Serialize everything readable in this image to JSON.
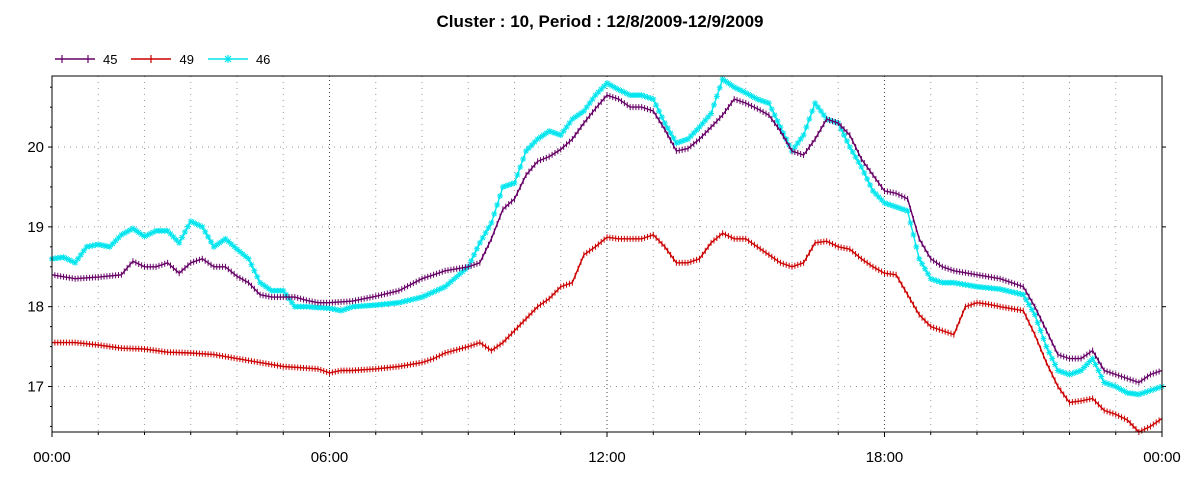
{
  "chart_data": {
    "type": "line",
    "title": "Cluster : 10, Period : 12/8/2009-12/9/2009",
    "xlabel": "",
    "ylabel": "",
    "x_range_hours": [
      0,
      24
    ],
    "xlim_labels": [
      "00:00",
      "00:00"
    ],
    "x_ticks": [
      {
        "hour": 0,
        "label": "00:00"
      },
      {
        "hour": 6,
        "label": "06:00"
      },
      {
        "hour": 12,
        "label": "12:00"
      },
      {
        "hour": 18,
        "label": "18:00"
      },
      {
        "hour": 24,
        "label": "00:00"
      }
    ],
    "y_ticks": [
      17,
      18,
      19,
      20
    ],
    "ylim": [
      16.43,
      20.89
    ],
    "grid": true,
    "legend_position": "top-left",
    "series": [
      {
        "name": "45",
        "color": "#660066",
        "marker": "+",
        "points": [
          [
            0,
            18.4
          ],
          [
            0.5,
            18.35
          ],
          [
            1,
            18.37
          ],
          [
            1.5,
            18.4
          ],
          [
            1.75,
            18.57
          ],
          [
            2,
            18.5
          ],
          [
            2.25,
            18.5
          ],
          [
            2.5,
            18.55
          ],
          [
            2.75,
            18.42
          ],
          [
            3,
            18.55
          ],
          [
            3.25,
            18.6
          ],
          [
            3.5,
            18.5
          ],
          [
            3.75,
            18.5
          ],
          [
            4,
            18.38
          ],
          [
            4.25,
            18.3
          ],
          [
            4.5,
            18.15
          ],
          [
            4.75,
            18.12
          ],
          [
            5,
            18.12
          ],
          [
            5.25,
            18.12
          ],
          [
            5.5,
            18.08
          ],
          [
            5.75,
            18.05
          ],
          [
            6,
            18.05
          ],
          [
            6.5,
            18.07
          ],
          [
            7,
            18.13
          ],
          [
            7.5,
            18.2
          ],
          [
            8,
            18.35
          ],
          [
            8.25,
            18.4
          ],
          [
            8.5,
            18.45
          ],
          [
            9,
            18.5
          ],
          [
            9.25,
            18.55
          ],
          [
            9.5,
            18.85
          ],
          [
            9.75,
            19.22
          ],
          [
            10,
            19.35
          ],
          [
            10.25,
            19.65
          ],
          [
            10.5,
            19.82
          ],
          [
            10.75,
            19.88
          ],
          [
            11,
            19.97
          ],
          [
            11.25,
            20.1
          ],
          [
            11.5,
            20.3
          ],
          [
            11.75,
            20.48
          ],
          [
            12,
            20.65
          ],
          [
            12.25,
            20.6
          ],
          [
            12.5,
            20.5
          ],
          [
            12.75,
            20.5
          ],
          [
            13,
            20.45
          ],
          [
            13.25,
            20.22
          ],
          [
            13.5,
            19.95
          ],
          [
            13.75,
            19.98
          ],
          [
            14,
            20.1
          ],
          [
            14.25,
            20.25
          ],
          [
            14.5,
            20.4
          ],
          [
            14.75,
            20.6
          ],
          [
            15,
            20.55
          ],
          [
            15.25,
            20.48
          ],
          [
            15.5,
            20.4
          ],
          [
            15.75,
            20.2
          ],
          [
            16,
            19.95
          ],
          [
            16.25,
            19.9
          ],
          [
            16.5,
            20.1
          ],
          [
            16.75,
            20.35
          ],
          [
            17,
            20.3
          ],
          [
            17.25,
            20.15
          ],
          [
            17.5,
            19.85
          ],
          [
            17.75,
            19.65
          ],
          [
            18,
            19.45
          ],
          [
            18.25,
            19.42
          ],
          [
            18.5,
            19.35
          ],
          [
            18.75,
            18.85
          ],
          [
            19,
            18.6
          ],
          [
            19.25,
            18.5
          ],
          [
            19.5,
            18.45
          ],
          [
            20,
            18.4
          ],
          [
            20.5,
            18.35
          ],
          [
            21,
            18.25
          ],
          [
            21.25,
            18.0
          ],
          [
            21.5,
            17.7
          ],
          [
            21.75,
            17.4
          ],
          [
            22,
            17.35
          ],
          [
            22.25,
            17.35
          ],
          [
            22.5,
            17.45
          ],
          [
            22.75,
            17.2
          ],
          [
            23,
            17.15
          ],
          [
            23.25,
            17.1
          ],
          [
            23.5,
            17.05
          ],
          [
            23.75,
            17.15
          ],
          [
            24,
            17.2
          ]
        ]
      },
      {
        "name": "49",
        "color": "#cc0000",
        "marker": "+",
        "points": [
          [
            0,
            17.55
          ],
          [
            0.5,
            17.55
          ],
          [
            1,
            17.52
          ],
          [
            1.5,
            17.48
          ],
          [
            2,
            17.47
          ],
          [
            2.5,
            17.43
          ],
          [
            3,
            17.42
          ],
          [
            3.5,
            17.4
          ],
          [
            4,
            17.35
          ],
          [
            4.5,
            17.3
          ],
          [
            5,
            17.25
          ],
          [
            5.5,
            17.23
          ],
          [
            5.75,
            17.22
          ],
          [
            6,
            17.17
          ],
          [
            6.25,
            17.2
          ],
          [
            6.5,
            17.2
          ],
          [
            7,
            17.22
          ],
          [
            7.5,
            17.25
          ],
          [
            8,
            17.3
          ],
          [
            8.25,
            17.35
          ],
          [
            8.5,
            17.42
          ],
          [
            9,
            17.5
          ],
          [
            9.25,
            17.55
          ],
          [
            9.5,
            17.45
          ],
          [
            9.75,
            17.55
          ],
          [
            10,
            17.7
          ],
          [
            10.25,
            17.85
          ],
          [
            10.5,
            18.0
          ],
          [
            10.75,
            18.1
          ],
          [
            11,
            18.25
          ],
          [
            11.25,
            18.3
          ],
          [
            11.5,
            18.65
          ],
          [
            11.75,
            18.75
          ],
          [
            12,
            18.87
          ],
          [
            12.25,
            18.85
          ],
          [
            12.5,
            18.85
          ],
          [
            12.75,
            18.85
          ],
          [
            13,
            18.9
          ],
          [
            13.25,
            18.75
          ],
          [
            13.5,
            18.55
          ],
          [
            13.75,
            18.55
          ],
          [
            14,
            18.6
          ],
          [
            14.25,
            18.8
          ],
          [
            14.5,
            18.92
          ],
          [
            14.75,
            18.85
          ],
          [
            15,
            18.85
          ],
          [
            15.25,
            18.75
          ],
          [
            15.5,
            18.65
          ],
          [
            15.75,
            18.55
          ],
          [
            16,
            18.5
          ],
          [
            16.25,
            18.55
          ],
          [
            16.5,
            18.8
          ],
          [
            16.75,
            18.82
          ],
          [
            17,
            18.75
          ],
          [
            17.25,
            18.72
          ],
          [
            17.5,
            18.6
          ],
          [
            17.75,
            18.5
          ],
          [
            18,
            18.42
          ],
          [
            18.25,
            18.4
          ],
          [
            18.5,
            18.15
          ],
          [
            18.75,
            17.9
          ],
          [
            19,
            17.75
          ],
          [
            19.25,
            17.7
          ],
          [
            19.5,
            17.65
          ],
          [
            19.75,
            18.0
          ],
          [
            20,
            18.05
          ],
          [
            20.25,
            18.03
          ],
          [
            20.5,
            18.0
          ],
          [
            21,
            17.95
          ],
          [
            21.25,
            17.65
          ],
          [
            21.5,
            17.3
          ],
          [
            21.75,
            17.0
          ],
          [
            22,
            16.8
          ],
          [
            22.25,
            16.82
          ],
          [
            22.5,
            16.85
          ],
          [
            22.75,
            16.7
          ],
          [
            23,
            16.65
          ],
          [
            23.25,
            16.58
          ],
          [
            23.5,
            16.43
          ],
          [
            23.75,
            16.5
          ],
          [
            24,
            16.6
          ]
        ]
      },
      {
        "name": "46",
        "color": "#00e5ee",
        "marker": "*",
        "points": [
          [
            0,
            18.6
          ],
          [
            0.25,
            18.62
          ],
          [
            0.5,
            18.55
          ],
          [
            0.75,
            18.75
          ],
          [
            1,
            18.78
          ],
          [
            1.25,
            18.75
          ],
          [
            1.5,
            18.9
          ],
          [
            1.75,
            18.98
          ],
          [
            2,
            18.88
          ],
          [
            2.25,
            18.95
          ],
          [
            2.5,
            18.95
          ],
          [
            2.75,
            18.8
          ],
          [
            3,
            19.07
          ],
          [
            3.25,
            19.0
          ],
          [
            3.5,
            18.75
          ],
          [
            3.75,
            18.85
          ],
          [
            4,
            18.72
          ],
          [
            4.25,
            18.6
          ],
          [
            4.5,
            18.3
          ],
          [
            4.75,
            18.2
          ],
          [
            5,
            18.2
          ],
          [
            5.25,
            18.0
          ],
          [
            5.5,
            18.0
          ],
          [
            6,
            17.98
          ],
          [
            6.25,
            17.95
          ],
          [
            6.5,
            18.0
          ],
          [
            7,
            18.02
          ],
          [
            7.5,
            18.05
          ],
          [
            8,
            18.12
          ],
          [
            8.5,
            18.25
          ],
          [
            9,
            18.5
          ],
          [
            9.25,
            18.8
          ],
          [
            9.5,
            19.05
          ],
          [
            9.75,
            19.5
          ],
          [
            10,
            19.55
          ],
          [
            10.25,
            19.95
          ],
          [
            10.5,
            20.1
          ],
          [
            10.75,
            20.2
          ],
          [
            11,
            20.15
          ],
          [
            11.25,
            20.35
          ],
          [
            11.5,
            20.45
          ],
          [
            11.75,
            20.65
          ],
          [
            12,
            20.8
          ],
          [
            12.25,
            20.72
          ],
          [
            12.5,
            20.65
          ],
          [
            12.75,
            20.65
          ],
          [
            13,
            20.6
          ],
          [
            13.25,
            20.3
          ],
          [
            13.5,
            20.05
          ],
          [
            13.75,
            20.1
          ],
          [
            14,
            20.25
          ],
          [
            14.25,
            20.42
          ],
          [
            14.5,
            20.85
          ],
          [
            14.75,
            20.75
          ],
          [
            15,
            20.68
          ],
          [
            15.25,
            20.6
          ],
          [
            15.5,
            20.55
          ],
          [
            15.75,
            20.25
          ],
          [
            16,
            19.95
          ],
          [
            16.25,
            20.15
          ],
          [
            16.5,
            20.55
          ],
          [
            16.75,
            20.35
          ],
          [
            17,
            20.3
          ],
          [
            17.25,
            20.0
          ],
          [
            17.5,
            19.75
          ],
          [
            17.75,
            19.45
          ],
          [
            18,
            19.3
          ],
          [
            18.25,
            19.25
          ],
          [
            18.5,
            19.2
          ],
          [
            18.75,
            18.6
          ],
          [
            19,
            18.35
          ],
          [
            19.25,
            18.3
          ],
          [
            19.5,
            18.3
          ],
          [
            20,
            18.25
          ],
          [
            20.5,
            18.22
          ],
          [
            21,
            18.15
          ],
          [
            21.25,
            17.9
          ],
          [
            21.5,
            17.5
          ],
          [
            21.75,
            17.2
          ],
          [
            22,
            17.15
          ],
          [
            22.25,
            17.2
          ],
          [
            22.5,
            17.35
          ],
          [
            22.75,
            17.05
          ],
          [
            23,
            17.0
          ],
          [
            23.25,
            16.92
          ],
          [
            23.5,
            16.9
          ],
          [
            23.75,
            16.95
          ],
          [
            24,
            17.0
          ]
        ]
      }
    ]
  }
}
